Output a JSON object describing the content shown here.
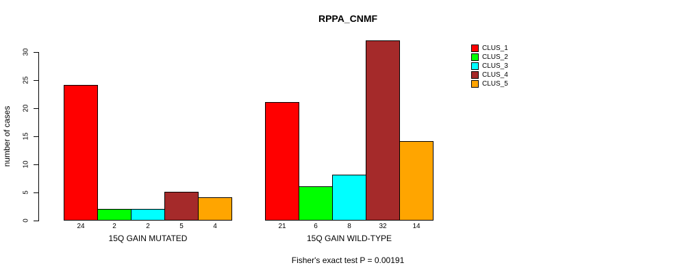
{
  "title": "RPPA_CNMF",
  "footer_note": "Fisher's exact test P = 0.00191",
  "y_axis": {
    "label": "number of cases",
    "ticks": [
      0,
      5,
      10,
      15,
      20,
      25,
      30
    ]
  },
  "legend": {
    "items": [
      "CLUS_1",
      "CLUS_2",
      "CLUS_3",
      "CLUS_4",
      "CLUS_5"
    ]
  },
  "chart_data": {
    "type": "bar",
    "title": "RPPA_CNMF",
    "xlabel": "",
    "ylabel": "number of cases",
    "ylim": [
      0,
      32
    ],
    "grid": false,
    "legend_position": "top-right",
    "show_bar_value_labels": true,
    "categories": [
      "15Q GAIN MUTATED",
      "15Q GAIN WILD-TYPE"
    ],
    "series": [
      {
        "name": "CLUS_1",
        "color": "#FF0000",
        "values": [
          24,
          21
        ]
      },
      {
        "name": "CLUS_2",
        "color": "#00FF00",
        "values": [
          2,
          6
        ]
      },
      {
        "name": "CLUS_3",
        "color": "#00FFFF",
        "values": [
          2,
          8
        ]
      },
      {
        "name": "CLUS_4",
        "color": "#A52A2A",
        "values": [
          5,
          32
        ]
      },
      {
        "name": "CLUS_5",
        "color": "#FFA500",
        "values": [
          4,
          14
        ]
      }
    ],
    "annotation": "Fisher's exact test P = 0.00191"
  }
}
